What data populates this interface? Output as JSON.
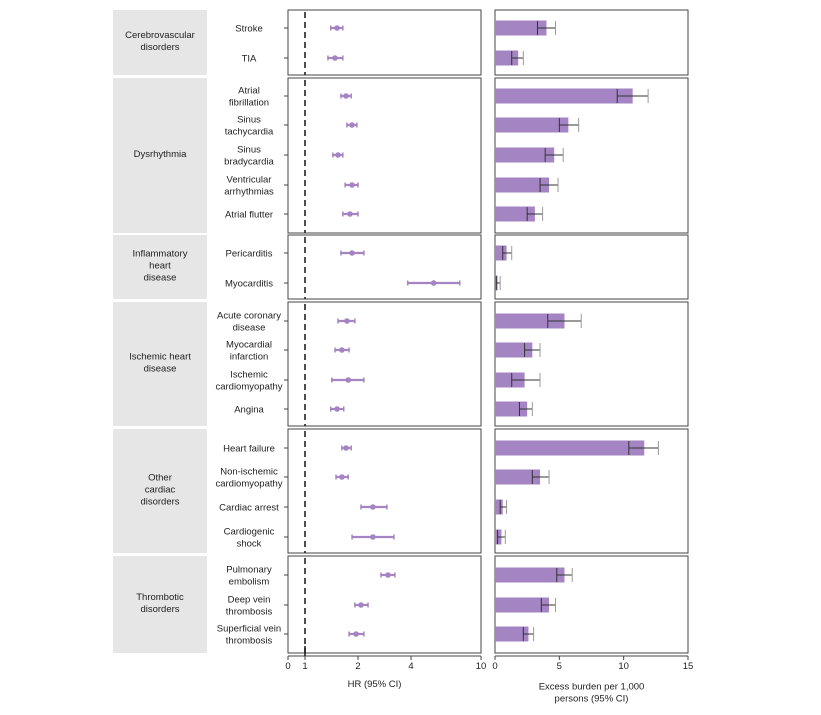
{
  "chart_data": [
    {
      "type": "scatter",
      "subtype": "forest-plot",
      "xlabel": "HR (95% CI)",
      "xscale": "log",
      "xlim": [
        0,
        10
      ],
      "xticks": [
        0,
        1,
        2,
        4,
        10
      ],
      "reference_line": 1,
      "color": "#a584c4",
      "groups": [
        {
          "name": "Cerebrovascular disorders",
          "lines": [
            "Cerebrovascular",
            "disorders"
          ],
          "rows": [
            {
              "label": [
                "Stroke"
              ],
              "hr": 1.52,
              "lo": 1.4,
              "hi": 1.64
            },
            {
              "label": [
                "TIA"
              ],
              "hr": 1.48,
              "lo": 1.35,
              "hi": 1.64
            }
          ]
        },
        {
          "name": "Dysrhythmia",
          "lines": [
            "Dysrhythmia"
          ],
          "rows": [
            {
              "label": [
                "Atrial",
                "fibrillation"
              ],
              "hr": 1.71,
              "lo": 1.6,
              "hi": 1.83
            },
            {
              "label": [
                "Sinus",
                "tachycardia"
              ],
              "hr": 1.85,
              "lo": 1.73,
              "hi": 1.97
            },
            {
              "label": [
                "Sinus",
                "bradycardia"
              ],
              "hr": 1.54,
              "lo": 1.44,
              "hi": 1.64
            },
            {
              "label": [
                "Ventricular",
                "arrhythmias"
              ],
              "hr": 1.85,
              "lo": 1.69,
              "hi": 2.0
            },
            {
              "label": [
                "Atrial flutter"
              ],
              "hr": 1.8,
              "lo": 1.64,
              "hi": 2.0
            }
          ]
        },
        {
          "name": "Inflammatory heart disease",
          "lines": [
            "Inflammatory",
            "heart",
            "disease"
          ],
          "rows": [
            {
              "label": [
                "Pericarditis"
              ],
              "hr": 1.85,
              "lo": 1.6,
              "hi": 2.16
            },
            {
              "label": [
                "Myocarditis"
              ],
              "hr": 5.38,
              "lo": 3.83,
              "hi": 7.57
            }
          ]
        },
        {
          "name": "Ischemic heart disease",
          "lines": [
            "Ischemic heart",
            "disease"
          ],
          "rows": [
            {
              "label": [
                "Acute coronary",
                "disease"
              ],
              "hr": 1.73,
              "lo": 1.54,
              "hi": 1.92
            },
            {
              "label": [
                "Myocardial",
                "infarction"
              ],
              "hr": 1.62,
              "lo": 1.48,
              "hi": 1.78
            },
            {
              "label": [
                "Ischemic",
                "cardiomyopathy"
              ],
              "hr": 1.76,
              "lo": 1.42,
              "hi": 2.16
            },
            {
              "label": [
                "Angina"
              ],
              "hr": 1.52,
              "lo": 1.4,
              "hi": 1.66
            }
          ]
        },
        {
          "name": "Other cardiac disorders",
          "lines": [
            "Other",
            "cardiac",
            "disorders"
          ],
          "rows": [
            {
              "label": [
                "Heart failure"
              ],
              "hr": 1.71,
              "lo": 1.62,
              "hi": 1.83
            },
            {
              "label": [
                "Non-ischemic",
                "cardiomyopathy"
              ],
              "hr": 1.62,
              "lo": 1.5,
              "hi": 1.76
            },
            {
              "label": [
                "Cardiac arrest"
              ],
              "hr": 2.43,
              "lo": 2.08,
              "hi": 2.92
            },
            {
              "label": [
                "Cardiogenic",
                "shock"
              ],
              "hr": 2.43,
              "lo": 1.85,
              "hi": 3.2
            }
          ]
        },
        {
          "name": "Thrombotic disorders",
          "lines": [
            "Thrombotic",
            "disorders"
          ],
          "rows": [
            {
              "label": [
                "Pulmonary",
                "embolism"
              ],
              "hr": 2.96,
              "lo": 2.7,
              "hi": 3.24
            },
            {
              "label": [
                "Deep vein",
                "thrombosis"
              ],
              "hr": 2.08,
              "lo": 1.92,
              "hi": 2.28
            },
            {
              "label": [
                "Superficial vein",
                "thrombosis"
              ],
              "hr": 1.95,
              "lo": 1.78,
              "hi": 2.16
            }
          ]
        }
      ]
    },
    {
      "type": "bar",
      "orientation": "horizontal",
      "xlabel": [
        "Excess burden per 1,000",
        "persons (95% CI)"
      ],
      "xlim": [
        0,
        15
      ],
      "xticks": [
        0,
        5,
        10,
        15
      ],
      "color": "#a584c4",
      "series": [
        {
          "category": "Stroke",
          "value": 4.0,
          "lo": 3.3,
          "hi": 4.7
        },
        {
          "category": "TIA",
          "value": 1.8,
          "lo": 1.3,
          "hi": 2.2
        },
        {
          "category": "Atrial fibrillation",
          "value": 10.7,
          "lo": 9.5,
          "hi": 11.9
        },
        {
          "category": "Sinus tachycardia",
          "value": 5.7,
          "lo": 5.0,
          "hi": 6.5
        },
        {
          "category": "Sinus bradycardia",
          "value": 4.6,
          "lo": 3.9,
          "hi": 5.3
        },
        {
          "category": "Ventricular arrhythmias",
          "value": 4.2,
          "lo": 3.5,
          "hi": 4.9
        },
        {
          "category": "Atrial flutter",
          "value": 3.1,
          "lo": 2.5,
          "hi": 3.7
        },
        {
          "category": "Pericarditis",
          "value": 0.9,
          "lo": 0.6,
          "hi": 1.3
        },
        {
          "category": "Myocarditis",
          "value": 0.2,
          "lo": 0.1,
          "hi": 0.4
        },
        {
          "category": "Acute coronary disease",
          "value": 5.4,
          "lo": 4.1,
          "hi": 6.7
        },
        {
          "category": "Myocardial infarction",
          "value": 2.9,
          "lo": 2.3,
          "hi": 3.5
        },
        {
          "category": "Ischemic cardiomyopathy",
          "value": 2.3,
          "lo": 1.3,
          "hi": 3.5
        },
        {
          "category": "Angina",
          "value": 2.5,
          "lo": 1.9,
          "hi": 2.9
        },
        {
          "category": "Heart failure",
          "value": 11.6,
          "lo": 10.4,
          "hi": 12.7
        },
        {
          "category": "Non-ischemic cardiomyopathy",
          "value": 3.5,
          "lo": 2.9,
          "hi": 4.2
        },
        {
          "category": "Cardiac arrest",
          "value": 0.6,
          "lo": 0.4,
          "hi": 0.9
        },
        {
          "category": "Cardiogenic shock",
          "value": 0.5,
          "lo": 0.2,
          "hi": 0.8
        },
        {
          "category": "Pulmonary embolism",
          "value": 5.4,
          "lo": 4.8,
          "hi": 6.0
        },
        {
          "category": "Deep vein thrombosis",
          "value": 4.2,
          "lo": 3.6,
          "hi": 4.7
        },
        {
          "category": "Superficial vein thrombosis",
          "value": 2.6,
          "lo": 2.2,
          "hi": 3.0
        }
      ]
    }
  ]
}
